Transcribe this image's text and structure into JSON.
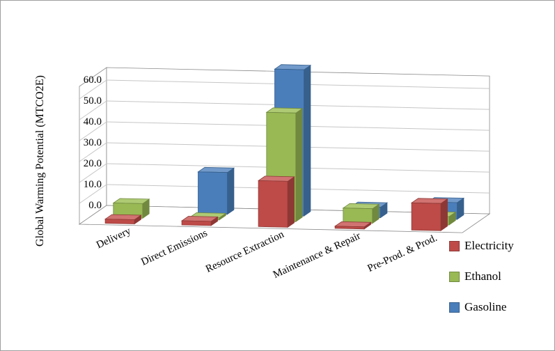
{
  "window": {
    "background": "#FFFFFF",
    "border_color": "#9E9E9E"
  },
  "chart_data": {
    "type": "bar",
    "subtype": "3d-column",
    "title": "",
    "xlabel": "",
    "ylabel": "Global Warming Potential (MTCO2E)",
    "categories": [
      "Delivery",
      "Direct Emissions",
      "Resource Extraction",
      "Maintenance & Repair",
      "Pre-Prod. & Prod."
    ],
    "series": [
      {
        "name": "Electricity",
        "color": "#BE4B48",
        "color_top": "#D07371",
        "color_side": "#8E3835",
        "values": [
          2,
          2,
          22,
          1,
          13
        ]
      },
      {
        "name": "Ethanol",
        "color": "#98B954",
        "color_top": "#AECB74",
        "color_side": "#71893F",
        "values": [
          7,
          1,
          52,
          7,
          4
        ]
      },
      {
        "name": "Gasoline",
        "color": "#4A7EBB",
        "color_top": "#729ACA",
        "color_side": "#37608D",
        "values": [
          0,
          20,
          70,
          5,
          8
        ]
      }
    ],
    "y_axis": {
      "min": 0,
      "max": 60,
      "step": 10,
      "tick_labels": [
        "0.0",
        "10.0",
        "20.0",
        "30.0",
        "40.0",
        "50.0",
        "60.0"
      ]
    },
    "legend_position": "right",
    "gridlines": true,
    "wall_color": "#FFFFFF",
    "floor_color": "#FFFFFF",
    "gridline_color": "#C6C6C6",
    "axis_line_color": "#898989"
  }
}
